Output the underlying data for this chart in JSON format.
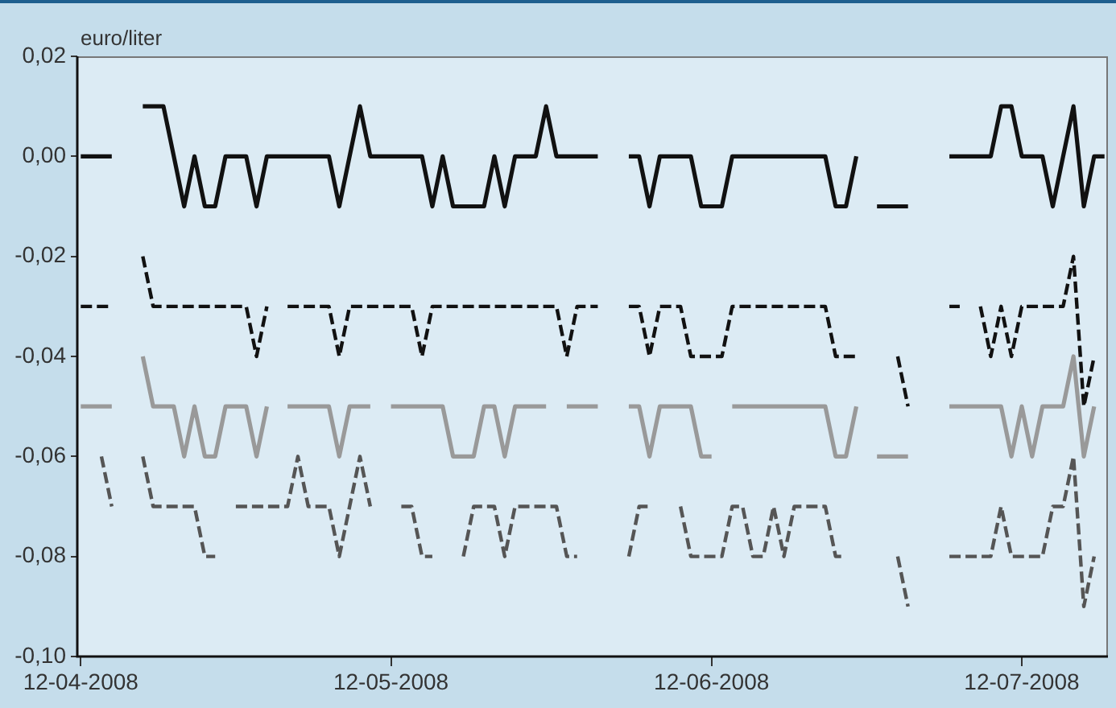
{
  "chart_data": {
    "type": "line",
    "ylabel": "euro/liter",
    "x": [
      "2008-04-12",
      "2008-04-13",
      "2008-04-14",
      "2008-04-15",
      "2008-04-16",
      "2008-04-17",
      "2008-04-18",
      "2008-04-19",
      "2008-04-20",
      "2008-04-21",
      "2008-04-22",
      "2008-04-23",
      "2008-04-24",
      "2008-04-25",
      "2008-04-26",
      "2008-04-27",
      "2008-04-28",
      "2008-04-29",
      "2008-04-30",
      "2008-05-01",
      "2008-05-02",
      "2008-05-03",
      "2008-05-04",
      "2008-05-05",
      "2008-05-06",
      "2008-05-07",
      "2008-05-08",
      "2008-05-09",
      "2008-05-10",
      "2008-05-11",
      "2008-05-12",
      "2008-05-13",
      "2008-05-14",
      "2008-05-15",
      "2008-05-16",
      "2008-05-17",
      "2008-05-18",
      "2008-05-19",
      "2008-05-20",
      "2008-05-21",
      "2008-05-22",
      "2008-05-23",
      "2008-05-24",
      "2008-05-25",
      "2008-05-26",
      "2008-05-27",
      "2008-05-28",
      "2008-05-29",
      "2008-05-30",
      "2008-05-31",
      "2008-06-01",
      "2008-06-02",
      "2008-06-03",
      "2008-06-04",
      "2008-06-05",
      "2008-06-06",
      "2008-06-07",
      "2008-06-08",
      "2008-06-09",
      "2008-06-10",
      "2008-06-11",
      "2008-06-12",
      "2008-06-13",
      "2008-06-14",
      "2008-06-15",
      "2008-06-16",
      "2008-06-17",
      "2008-06-18",
      "2008-06-19",
      "2008-06-20",
      "2008-06-21",
      "2008-06-22",
      "2008-06-23",
      "2008-06-24",
      "2008-06-25",
      "2008-06-26",
      "2008-06-27",
      "2008-06-28",
      "2008-06-29",
      "2008-06-30",
      "2008-07-01",
      "2008-07-02",
      "2008-07-03",
      "2008-07-04",
      "2008-07-05",
      "2008-07-06",
      "2008-07-07",
      "2008-07-08",
      "2008-07-09",
      "2008-07-10",
      "2008-07-11",
      "2008-07-12",
      "2008-07-13",
      "2008-07-14",
      "2008-07-15",
      "2008-07-16",
      "2008-07-17",
      "2008-07-18",
      "2008-07-19",
      "2008-07-20"
    ],
    "series": [
      {
        "color": "#111111",
        "line_style": "solid",
        "values": [
          0,
          0,
          0,
          0,
          null,
          null,
          0.01,
          0.01,
          0.01,
          0,
          -0.01,
          0,
          -0.01,
          -0.01,
          0,
          0,
          0,
          -0.01,
          0,
          0,
          0,
          0,
          0,
          0,
          0,
          -0.01,
          0,
          0.01,
          0,
          0,
          0,
          0,
          0,
          0,
          -0.01,
          0,
          -0.01,
          -0.01,
          -0.01,
          -0.01,
          0,
          -0.01,
          0,
          0,
          0,
          0.01,
          0,
          0,
          0,
          0,
          0,
          null,
          null,
          0,
          0,
          -0.01,
          0,
          0,
          0,
          0,
          -0.01,
          -0.01,
          -0.01,
          0,
          0,
          0,
          0,
          0,
          0,
          0,
          0,
          0,
          0,
          -0.01,
          -0.01,
          0,
          null,
          -0.01,
          -0.01,
          -0.01,
          -0.01,
          null,
          null,
          null,
          0,
          0,
          0,
          0,
          0,
          0.01,
          0.01,
          0,
          0,
          0,
          -0.01,
          0,
          0.01,
          -0.01,
          0,
          0
        ]
      },
      {
        "color": "#111111",
        "line_style": "dashed",
        "values": [
          -0.03,
          -0.03,
          -0.03,
          -0.03,
          null,
          null,
          -0.02,
          -0.03,
          -0.03,
          -0.03,
          -0.03,
          -0.03,
          -0.03,
          -0.03,
          -0.03,
          -0.03,
          -0.03,
          -0.04,
          -0.03,
          null,
          -0.03,
          -0.03,
          -0.03,
          -0.03,
          -0.03,
          -0.04,
          -0.03,
          -0.03,
          -0.03,
          -0.03,
          -0.03,
          -0.03,
          -0.03,
          -0.04,
          -0.03,
          -0.03,
          -0.03,
          -0.03,
          -0.03,
          -0.03,
          -0.03,
          -0.03,
          -0.03,
          -0.03,
          -0.03,
          -0.03,
          -0.03,
          -0.04,
          -0.03,
          -0.03,
          -0.03,
          null,
          null,
          -0.03,
          -0.03,
          -0.04,
          -0.03,
          -0.03,
          -0.03,
          -0.04,
          -0.04,
          -0.04,
          -0.04,
          -0.03,
          -0.03,
          -0.03,
          -0.03,
          -0.03,
          -0.03,
          -0.03,
          -0.03,
          -0.03,
          -0.03,
          -0.04,
          -0.04,
          -0.04,
          null,
          null,
          null,
          -0.04,
          -0.05,
          null,
          null,
          null,
          -0.03,
          -0.03,
          null,
          -0.03,
          -0.04,
          -0.03,
          -0.04,
          -0.03,
          -0.03,
          -0.03,
          -0.03,
          -0.03,
          -0.02,
          -0.05,
          -0.04,
          null
        ]
      },
      {
        "color": "#999999",
        "line_style": "solid",
        "values": [
          -0.05,
          -0.05,
          -0.05,
          -0.05,
          null,
          null,
          -0.04,
          -0.05,
          -0.05,
          -0.05,
          -0.06,
          -0.05,
          -0.06,
          -0.06,
          -0.05,
          -0.05,
          -0.05,
          -0.06,
          -0.05,
          null,
          -0.05,
          -0.05,
          -0.05,
          -0.05,
          -0.05,
          -0.06,
          -0.05,
          -0.05,
          -0.05,
          null,
          -0.05,
          -0.05,
          -0.05,
          -0.05,
          -0.05,
          -0.05,
          -0.06,
          -0.06,
          -0.06,
          -0.05,
          -0.05,
          -0.06,
          -0.05,
          -0.05,
          -0.05,
          -0.05,
          null,
          -0.05,
          -0.05,
          -0.05,
          -0.05,
          null,
          null,
          -0.05,
          -0.05,
          -0.06,
          -0.05,
          -0.05,
          -0.05,
          -0.05,
          -0.06,
          -0.06,
          null,
          -0.05,
          -0.05,
          -0.05,
          -0.05,
          -0.05,
          -0.05,
          -0.05,
          -0.05,
          -0.05,
          -0.05,
          -0.06,
          -0.06,
          -0.05,
          null,
          -0.06,
          -0.06,
          -0.06,
          -0.06,
          null,
          null,
          null,
          -0.05,
          -0.05,
          -0.05,
          -0.05,
          -0.05,
          -0.05,
          -0.06,
          -0.05,
          -0.06,
          -0.05,
          -0.05,
          -0.05,
          -0.04,
          -0.06,
          -0.05,
          null
        ]
      },
      {
        "color": "#555555",
        "line_style": "dashed",
        "values": [
          null,
          null,
          -0.06,
          -0.07,
          null,
          null,
          -0.06,
          -0.07,
          -0.07,
          -0.07,
          -0.07,
          -0.07,
          -0.08,
          -0.08,
          null,
          -0.07,
          -0.07,
          -0.07,
          -0.07,
          -0.07,
          -0.07,
          -0.06,
          -0.07,
          -0.07,
          -0.07,
          -0.08,
          -0.07,
          -0.06,
          -0.07,
          null,
          null,
          -0.07,
          -0.07,
          -0.08,
          -0.08,
          null,
          null,
          -0.08,
          -0.07,
          -0.07,
          -0.07,
          -0.08,
          -0.07,
          -0.07,
          -0.07,
          -0.07,
          -0.07,
          -0.08,
          -0.08,
          null,
          null,
          null,
          null,
          -0.08,
          -0.07,
          -0.07,
          null,
          null,
          -0.07,
          -0.08,
          -0.08,
          -0.08,
          -0.08,
          -0.07,
          -0.07,
          -0.08,
          -0.08,
          -0.07,
          -0.08,
          -0.07,
          -0.07,
          -0.07,
          -0.07,
          -0.08,
          -0.08,
          null,
          null,
          null,
          null,
          -0.08,
          -0.09,
          null,
          null,
          null,
          -0.08,
          -0.08,
          -0.08,
          -0.08,
          -0.08,
          -0.07,
          -0.08,
          -0.08,
          -0.08,
          -0.08,
          -0.07,
          -0.07,
          -0.06,
          -0.09,
          -0.08,
          null
        ]
      }
    ],
    "xlim": [
      "2008-04-11T16:00",
      "2008-07-20T08:00"
    ],
    "xticks": [
      {
        "value": "2008-04-12",
        "label": "12-04-2008"
      },
      {
        "value": "2008-05-12",
        "label": "12-05-2008"
      },
      {
        "value": "2008-06-12",
        "label": "12-06-2008"
      },
      {
        "value": "2008-07-12",
        "label": "12-07-2008"
      }
    ],
    "ylim": [
      -0.1,
      0.02
    ],
    "yticks": [
      {
        "value": 0.02,
        "label": "0,02"
      },
      {
        "value": 0,
        "label": "0,00"
      },
      {
        "value": -0.02,
        "label": "-0,02"
      },
      {
        "value": -0.04,
        "label": "-0,04"
      },
      {
        "value": -0.06,
        "label": "-0,06"
      },
      {
        "value": -0.08,
        "label": "-0,08"
      },
      {
        "value": -0.1,
        "label": "-0,10"
      }
    ],
    "grid": false,
    "legend": false,
    "marker": "none"
  }
}
